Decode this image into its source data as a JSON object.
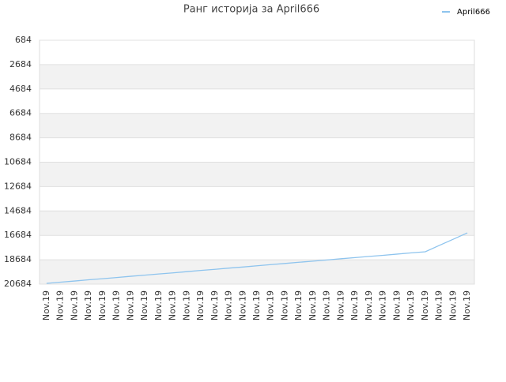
{
  "chart_data": {
    "type": "line",
    "title": "Ранг историја за April666",
    "categories": [
      "Nov.19",
      "Nov.19",
      "Nov.19",
      "Nov.19",
      "Nov.19",
      "Nov.19",
      "Nov.19",
      "Nov.19",
      "Nov.19",
      "Nov.19",
      "Nov.19",
      "Nov.19",
      "Nov.19",
      "Nov.19",
      "Nov.19",
      "Nov.19",
      "Nov.19",
      "Nov.19",
      "Nov.19",
      "Nov.19",
      "Nov.19",
      "Nov.19",
      "Nov.19",
      "Nov.19",
      "Nov.19",
      "Nov.19",
      "Nov.19",
      "Nov.19",
      "Nov.19",
      "Nov.19",
      "Nov.19"
    ],
    "series": [
      {
        "name": "April666",
        "color": "#8ec4ee",
        "values": [
          20620,
          20520,
          20430,
          20330,
          20240,
          20140,
          20040,
          19950,
          19850,
          19760,
          19660,
          19560,
          19470,
          19370,
          19280,
          19180,
          19080,
          18990,
          18890,
          18800,
          18700,
          18600,
          18510,
          18410,
          18320,
          18220,
          18120,
          18030,
          17510,
          17000,
          16480
        ]
      }
    ],
    "ylim": [
      20684,
      684
    ],
    "yticks": [
      684,
      2684,
      4684,
      6684,
      8684,
      10684,
      12684,
      14684,
      16684,
      18684,
      20684
    ],
    "grid": true,
    "legend": "top-right"
  }
}
